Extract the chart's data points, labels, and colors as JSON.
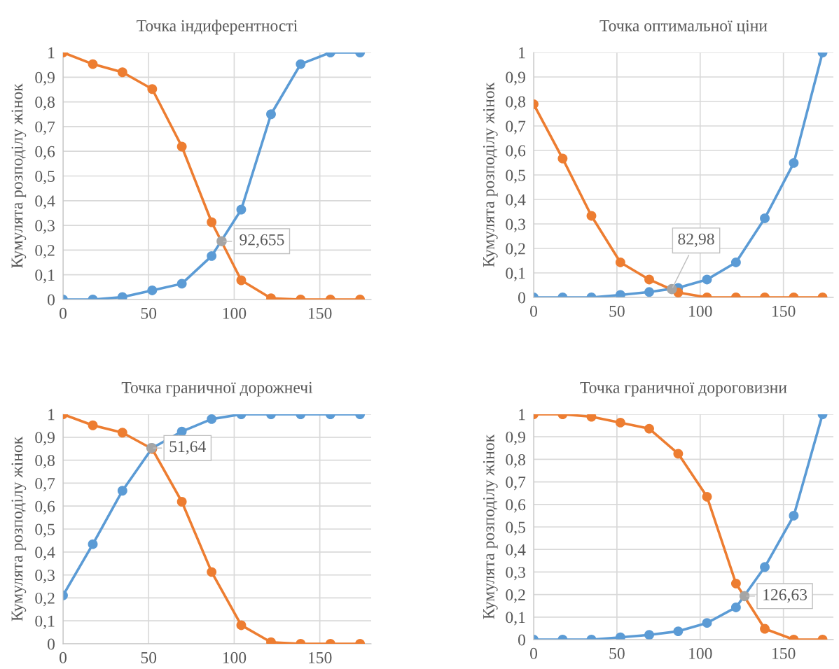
{
  "chart_data": [
    {
      "type": "line",
      "title": "Точка індиферентності",
      "ylabel": "Кумулята розподілу жінок",
      "x": [
        0,
        17.4,
        34.7,
        52.1,
        69.4,
        86.8,
        104.1,
        121.5,
        138.8,
        156.2,
        173.5
      ],
      "xlim": [
        0,
        180
      ],
      "xticks": [
        0,
        50,
        100,
        150
      ],
      "ylim": [
        0,
        1
      ],
      "yticks": [
        0,
        {
          "value": 0.1,
          "label": "0,1"
        },
        {
          "value": 0.2,
          "label": "0,2"
        },
        {
          "value": 0.3,
          "label": "0,3"
        },
        {
          "value": 0.4,
          "label": "0,4"
        },
        {
          "value": 0.5,
          "label": "0,5"
        },
        {
          "value": 0.6,
          "label": "0,6"
        },
        {
          "value": 0.7,
          "label": "0,7"
        },
        {
          "value": 0.8,
          "label": "0,8"
        },
        {
          "value": 0.9,
          "label": "0,9"
        },
        1
      ],
      "grid": true,
      "marker": "circle",
      "line_style": "solid",
      "series": [
        {
          "color": "#5b9bd5",
          "values": [
            0,
            0,
            0.01,
            0.037,
            0.064,
            0.176,
            0.364,
            0.75,
            0.953,
            1,
            1
          ]
        },
        {
          "color": "#ed7d31",
          "values": [
            1,
            0.953,
            0.92,
            0.852,
            0.619,
            0.313,
            0.078,
            0.005,
            0,
            0,
            0
          ]
        },
        {
          "type": "scatter",
          "color": "#a5a5a5",
          "x": [
            92.655
          ],
          "values": [
            0.236
          ]
        }
      ],
      "annotations": [
        {
          "text": "92,655",
          "x": 92.655,
          "y": 0.236
        }
      ]
    },
    {
      "type": "line",
      "title": "Точка оптимальної ціни",
      "ylabel": "Кумулята розподілу жінок",
      "x": [
        0,
        17.4,
        34.7,
        52.1,
        69.4,
        86.8,
        104.1,
        121.5,
        138.8,
        156.2,
        173.5
      ],
      "xlim": [
        0,
        180
      ],
      "xticks": [
        0,
        50,
        100,
        150
      ],
      "ylim": [
        0,
        1
      ],
      "yticks": [
        0,
        {
          "value": 0.1,
          "label": "0,1"
        },
        {
          "value": 0.2,
          "label": "0,2"
        },
        {
          "value": 0.3,
          "label": "0,3"
        },
        {
          "value": 0.4,
          "label": "0,4"
        },
        {
          "value": 0.5,
          "label": "0,5"
        },
        {
          "value": 0.6,
          "label": "0,6"
        },
        {
          "value": 0.7,
          "label": "0,7"
        },
        {
          "value": 0.8,
          "label": "0,8"
        },
        {
          "value": 0.9,
          "label": "0,9"
        },
        1
      ],
      "grid": true,
      "marker": "circle",
      "line_style": "solid",
      "series": [
        {
          "color": "#5b9bd5",
          "values": [
            0,
            0,
            0,
            0.01,
            0.022,
            0.039,
            0.073,
            0.143,
            0.323,
            0.549,
            1
          ]
        },
        {
          "color": "#ed7d31",
          "values": [
            0.789,
            0.567,
            0.333,
            0.143,
            0.073,
            0.02,
            0,
            0,
            0,
            0,
            0
          ]
        },
        {
          "type": "scatter",
          "color": "#a5a5a5",
          "x": [
            82.98
          ],
          "values": [
            0.034
          ]
        }
      ],
      "annotations": [
        {
          "text": "82,98",
          "x": 82.98,
          "y": 0.034
        }
      ]
    },
    {
      "type": "line",
      "title": "Точка граничної дорожнечі",
      "ylabel": "Кумулята розподілу жінок",
      "x": [
        0,
        17.4,
        34.7,
        52.1,
        69.4,
        86.8,
        104.1,
        121.5,
        138.8,
        156.2,
        173.5
      ],
      "xlim": [
        0,
        180
      ],
      "xticks": [
        0,
        50,
        100,
        150
      ],
      "ylim": [
        0,
        1
      ],
      "yticks": [
        0,
        {
          "value": 0.1,
          "label": "0,1"
        },
        {
          "value": 0.2,
          "label": "0,2"
        },
        {
          "value": 0.3,
          "label": "0,3"
        },
        {
          "value": 0.4,
          "label": "0,4"
        },
        {
          "value": 0.5,
          "label": "0,5"
        },
        {
          "value": 0.6,
          "label": "0,6"
        },
        {
          "value": 0.7,
          "label": "0,7"
        },
        {
          "value": 0.8,
          "label": "0,8"
        },
        {
          "value": 0.9,
          "label": "0,9"
        },
        1
      ],
      "grid": true,
      "marker": "circle",
      "line_style": "solid",
      "series": [
        {
          "color": "#5b9bd5",
          "values": [
            0.211,
            0.434,
            0.667,
            0.853,
            0.925,
            0.979,
            1,
            1,
            1,
            1,
            1
          ]
        },
        {
          "color": "#ed7d31",
          "values": [
            1,
            0.952,
            0.92,
            0.849,
            0.619,
            0.313,
            0.081,
            0.007,
            0,
            0,
            0
          ]
        },
        {
          "type": "scatter",
          "color": "#a5a5a5",
          "x": [
            51.64
          ],
          "values": [
            0.853
          ]
        }
      ],
      "annotations": [
        {
          "text": "51,64",
          "x": 51.64,
          "y": 0.853
        }
      ]
    },
    {
      "type": "line",
      "title": "Точка граничної дороговизни",
      "ylabel": "Кумулята розподілу жінок",
      "x": [
        0,
        17.4,
        34.7,
        52.1,
        69.4,
        86.8,
        104.1,
        121.5,
        138.8,
        156.2,
        173.5
      ],
      "xlim": [
        0,
        180
      ],
      "xticks": [
        0,
        50,
        100,
        150
      ],
      "ylim": [
        0,
        1
      ],
      "yticks": [
        0,
        {
          "value": 0.1,
          "label": "0,1"
        },
        {
          "value": 0.2,
          "label": "0,2"
        },
        {
          "value": 0.3,
          "label": "0,3"
        },
        {
          "value": 0.4,
          "label": "0,4"
        },
        {
          "value": 0.5,
          "label": "0,5"
        },
        {
          "value": 0.6,
          "label": "0,6"
        },
        {
          "value": 0.7,
          "label": "0,7"
        },
        {
          "value": 0.8,
          "label": "0,8"
        },
        {
          "value": 0.9,
          "label": "0,9"
        },
        1
      ],
      "grid": true,
      "marker": "circle",
      "line_style": "solid",
      "series": [
        {
          "color": "#5b9bd5",
          "values": [
            0,
            0,
            0,
            0.01,
            0.021,
            0.037,
            0.074,
            0.143,
            0.322,
            0.55,
            1
          ]
        },
        {
          "color": "#ed7d31",
          "values": [
            1,
            1,
            0.989,
            0.963,
            0.936,
            0.825,
            0.634,
            0.249,
            0.048,
            0,
            0
          ]
        },
        {
          "type": "scatter",
          "color": "#a5a5a5",
          "x": [
            126.63
          ],
          "values": [
            0.193
          ]
        }
      ],
      "annotations": [
        {
          "text": "126,63",
          "x": 126.63,
          "y": 0.193
        }
      ]
    }
  ]
}
